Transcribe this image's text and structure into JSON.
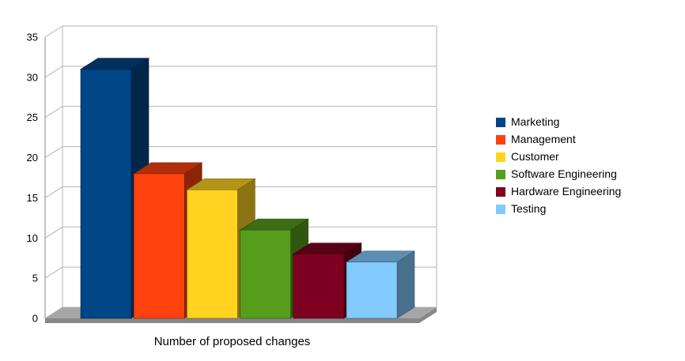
{
  "chart_data": {
    "type": "bar",
    "title": "",
    "xlabel": "Number of proposed changes",
    "ylabel": "",
    "ylim": [
      0,
      35
    ],
    "yticks": [
      0,
      5,
      10,
      15,
      20,
      25,
      30,
      35
    ],
    "categories": [
      "Marketing",
      "Management",
      "Customer",
      "Software Engineering",
      "Hardware Engineering",
      "Testing"
    ],
    "values": [
      31,
      18,
      16,
      11,
      8,
      7
    ],
    "colors": [
      "#004586",
      "#FF420E",
      "#FFD320",
      "#579D1C",
      "#7E0021",
      "#83CAFF"
    ],
    "legend_position": "right",
    "grid": true,
    "style_3d": true
  },
  "colors": {
    "grid": "#b3b3b3",
    "wall_edge": "#b3b3b3",
    "axis_edge": "#8c8c8c",
    "floor_top": "#a6a6a6",
    "floor_front": "#878787",
    "background": "#ffffff",
    "text": "#000000"
  }
}
